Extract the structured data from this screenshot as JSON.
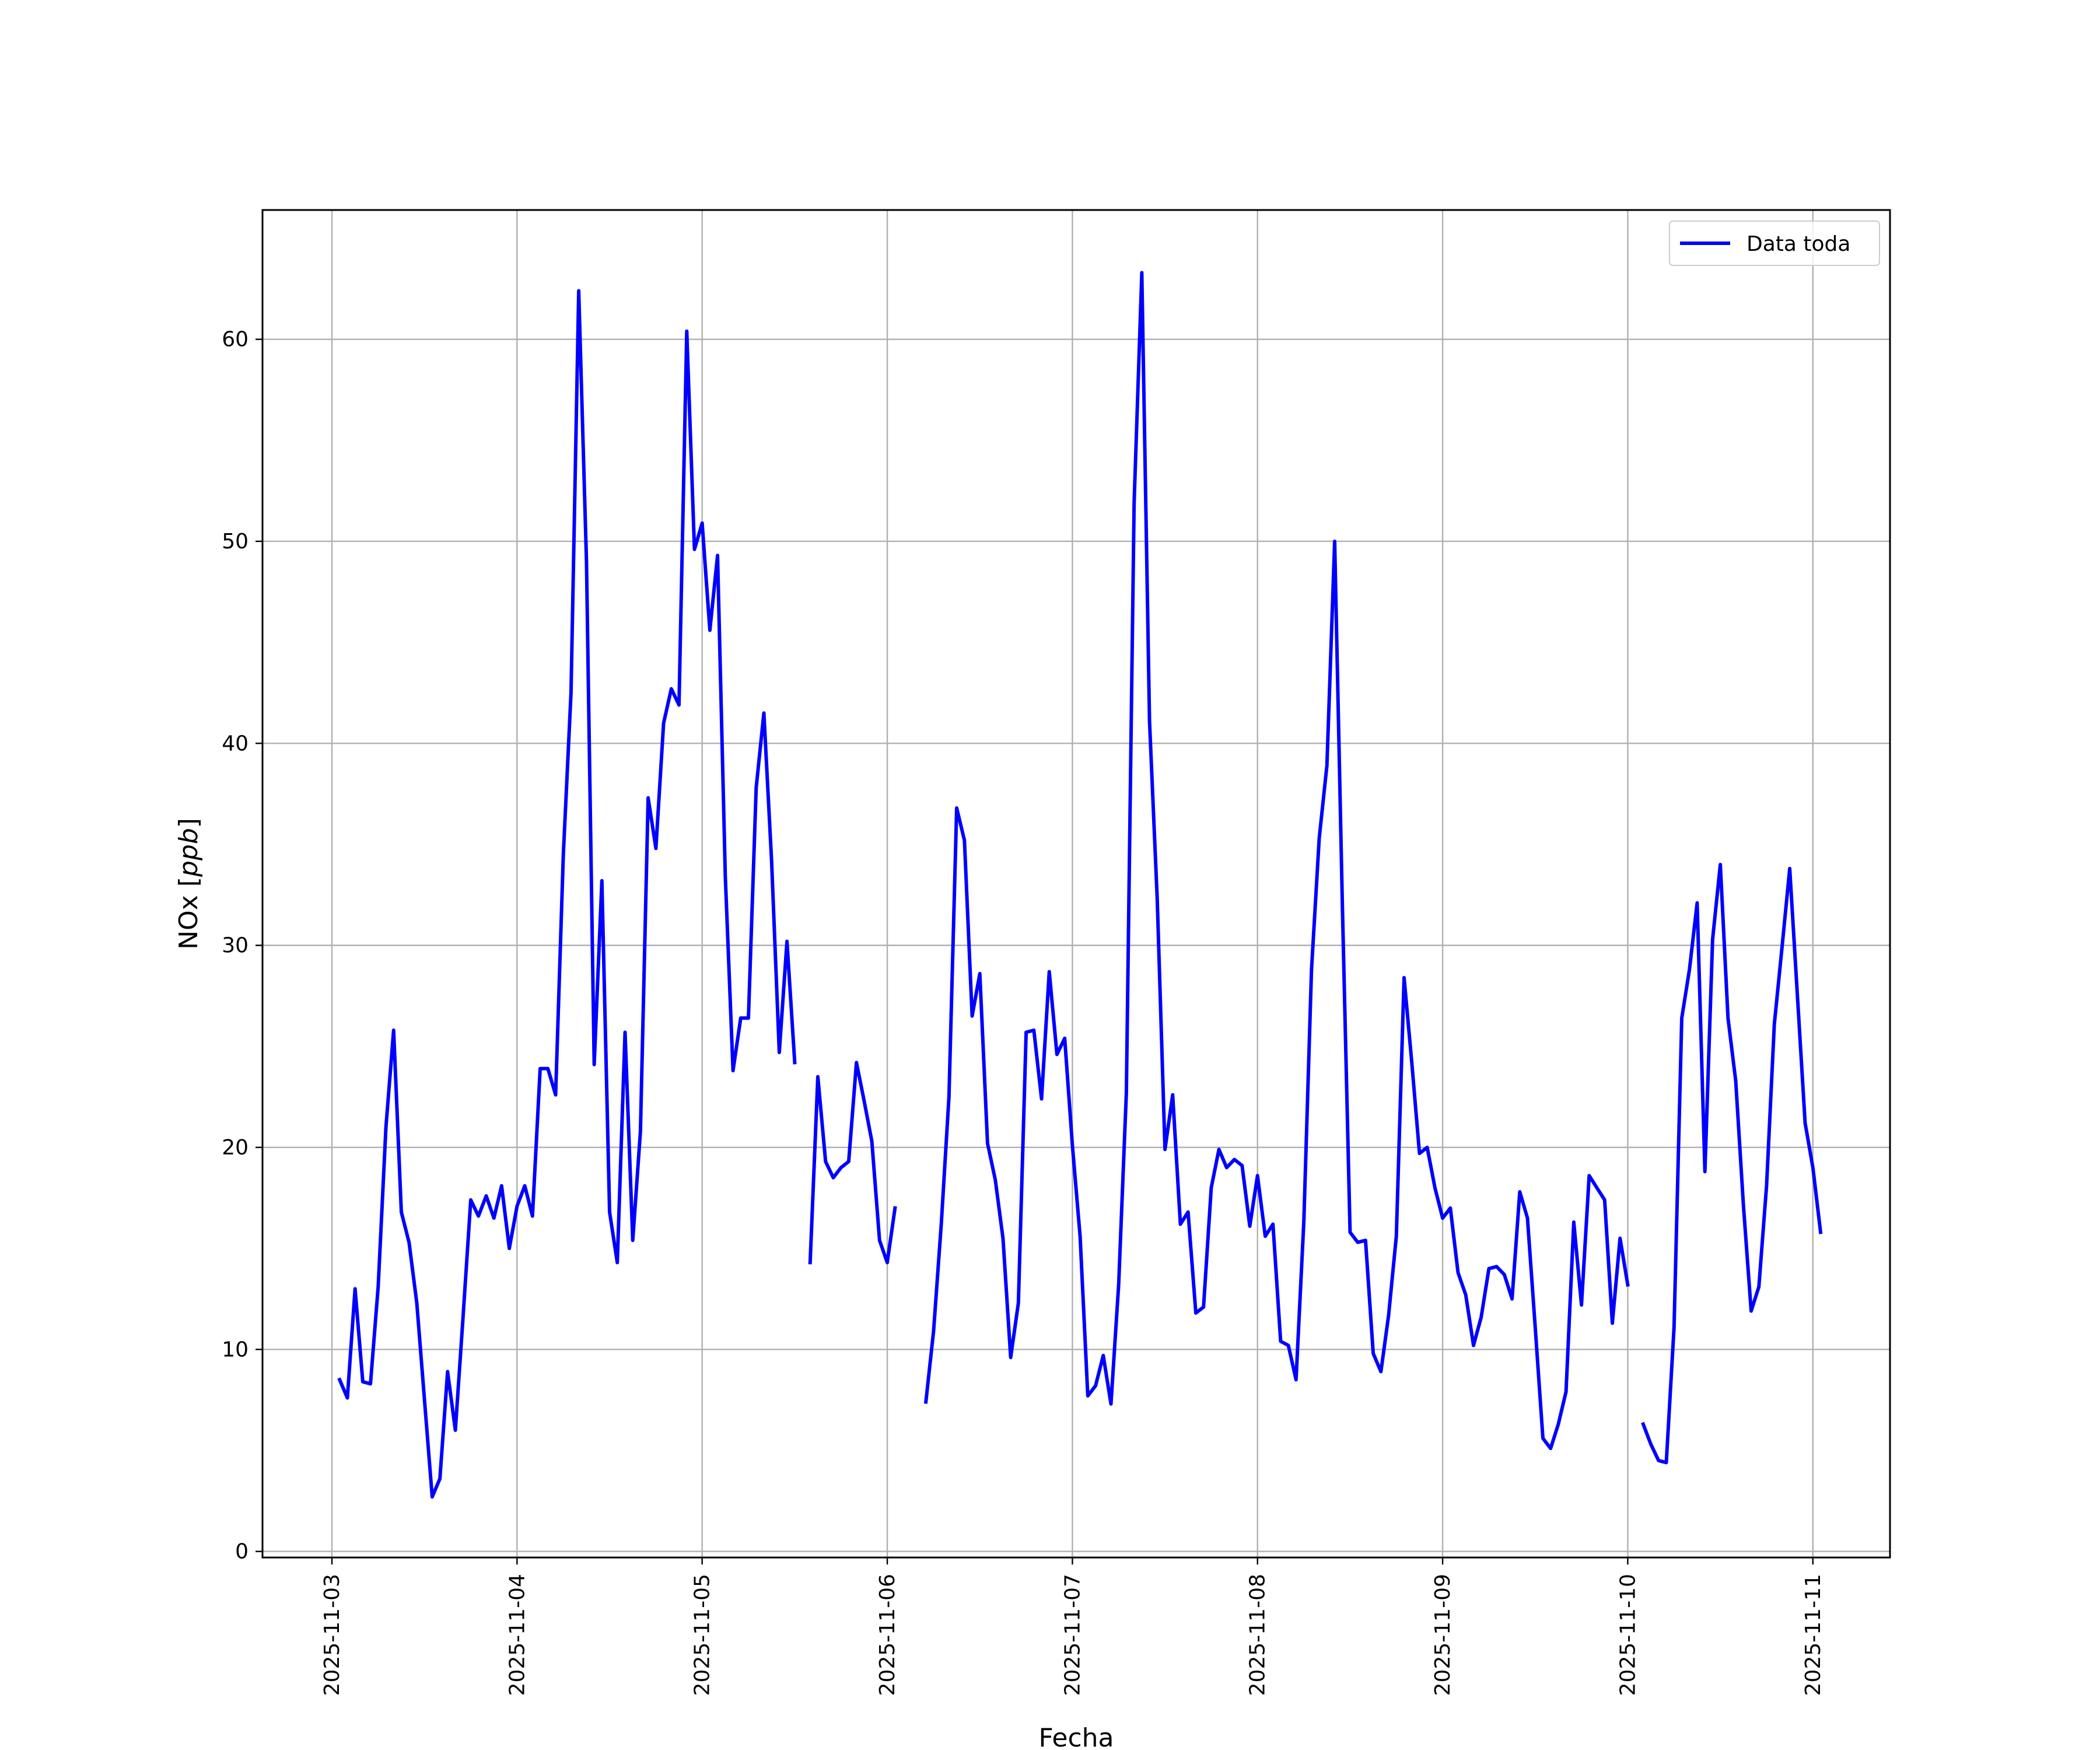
{
  "chart_data": {
    "type": "line",
    "xlabel": "Fecha",
    "ylabel": "NOx [ppb]",
    "ylabel_parts": {
      "prefix": "NOx [",
      "unit": "ppb",
      "suffix": "]"
    },
    "xlim": [
      "2025-11-02 15:00",
      "2025-11-11 10:00"
    ],
    "ylim": [
      -0.3,
      66.4
    ],
    "x_ticks": [
      "2025-11-03",
      "2025-11-04",
      "2025-11-05",
      "2025-11-06",
      "2025-11-07",
      "2025-11-08",
      "2025-11-09",
      "2025-11-10",
      "2025-11-11"
    ],
    "y_ticks": [
      0,
      10,
      20,
      30,
      40,
      50,
      60
    ],
    "grid": true,
    "legend_position": "upper right",
    "series": [
      {
        "name": "Data toda",
        "color": "#0000ff",
        "start": "2025-11-03 01:00",
        "interval_hours": 1,
        "values": [
          8.5,
          7.6,
          13.0,
          8.4,
          8.3,
          13.1,
          21.0,
          25.8,
          16.8,
          15.3,
          12.3,
          7.5,
          2.7,
          3.6,
          8.9,
          6.0,
          11.6,
          17.4,
          16.6,
          17.6,
          16.5,
          18.1,
          15.0,
          17.1,
          18.1,
          16.6,
          23.9,
          23.9,
          22.6,
          34.5,
          42.5,
          62.4,
          49.0,
          24.1,
          33.2,
          16.8,
          14.3,
          25.7,
          15.4,
          20.8,
          37.3,
          34.8,
          41.0,
          42.7,
          41.9,
          60.4,
          49.6,
          50.9,
          45.6,
          49.3,
          33.4,
          23.8,
          26.4,
          26.4,
          37.8,
          41.5,
          34.2,
          24.7,
          30.2,
          24.2,
          null,
          14.3,
          23.5,
          19.3,
          18.5,
          19.0,
          19.3,
          24.2,
          22.3,
          20.3,
          15.4,
          14.3,
          17.0,
          null,
          null,
          null,
          7.4,
          10.9,
          16.2,
          22.5,
          36.8,
          35.2,
          26.5,
          28.6,
          20.2,
          18.4,
          15.5,
          9.6,
          12.3,
          25.7,
          25.8,
          22.4,
          28.7,
          24.6,
          25.4,
          20.1,
          15.6,
          7.7,
          8.2,
          9.7,
          7.3,
          13.2,
          22.7,
          51.9,
          63.3,
          41.1,
          32.3,
          19.9,
          22.6,
          16.2,
          16.8,
          11.8,
          12.1,
          18.0,
          19.9,
          19.0,
          19.4,
          19.1,
          16.1,
          18.6,
          15.6,
          16.2,
          10.4,
          10.2,
          8.5,
          16.3,
          28.8,
          35.3,
          38.9,
          50.0,
          32.0,
          15.8,
          15.3,
          15.4,
          9.8,
          8.9,
          11.7,
          15.6,
          28.4,
          24.2,
          19.7,
          20.0,
          18.0,
          16.5,
          17.0,
          13.8,
          12.7,
          10.2,
          11.6,
          14.0,
          14.1,
          13.7,
          12.5,
          17.8,
          16.5,
          11.1,
          5.6,
          5.1,
          6.3,
          7.9,
          16.3,
          12.2,
          18.6,
          18.0,
          17.4,
          11.3,
          15.5,
          13.2,
          null,
          6.3,
          5.3,
          4.5,
          4.4,
          11.1,
          26.4,
          28.8,
          32.1,
          18.8,
          30.3,
          34.0,
          26.4,
          23.3,
          17.1,
          11.9,
          13.1,
          18.1,
          26.1,
          29.9,
          33.8,
          27.5,
          21.2,
          19.0,
          15.8
        ]
      }
    ]
  }
}
